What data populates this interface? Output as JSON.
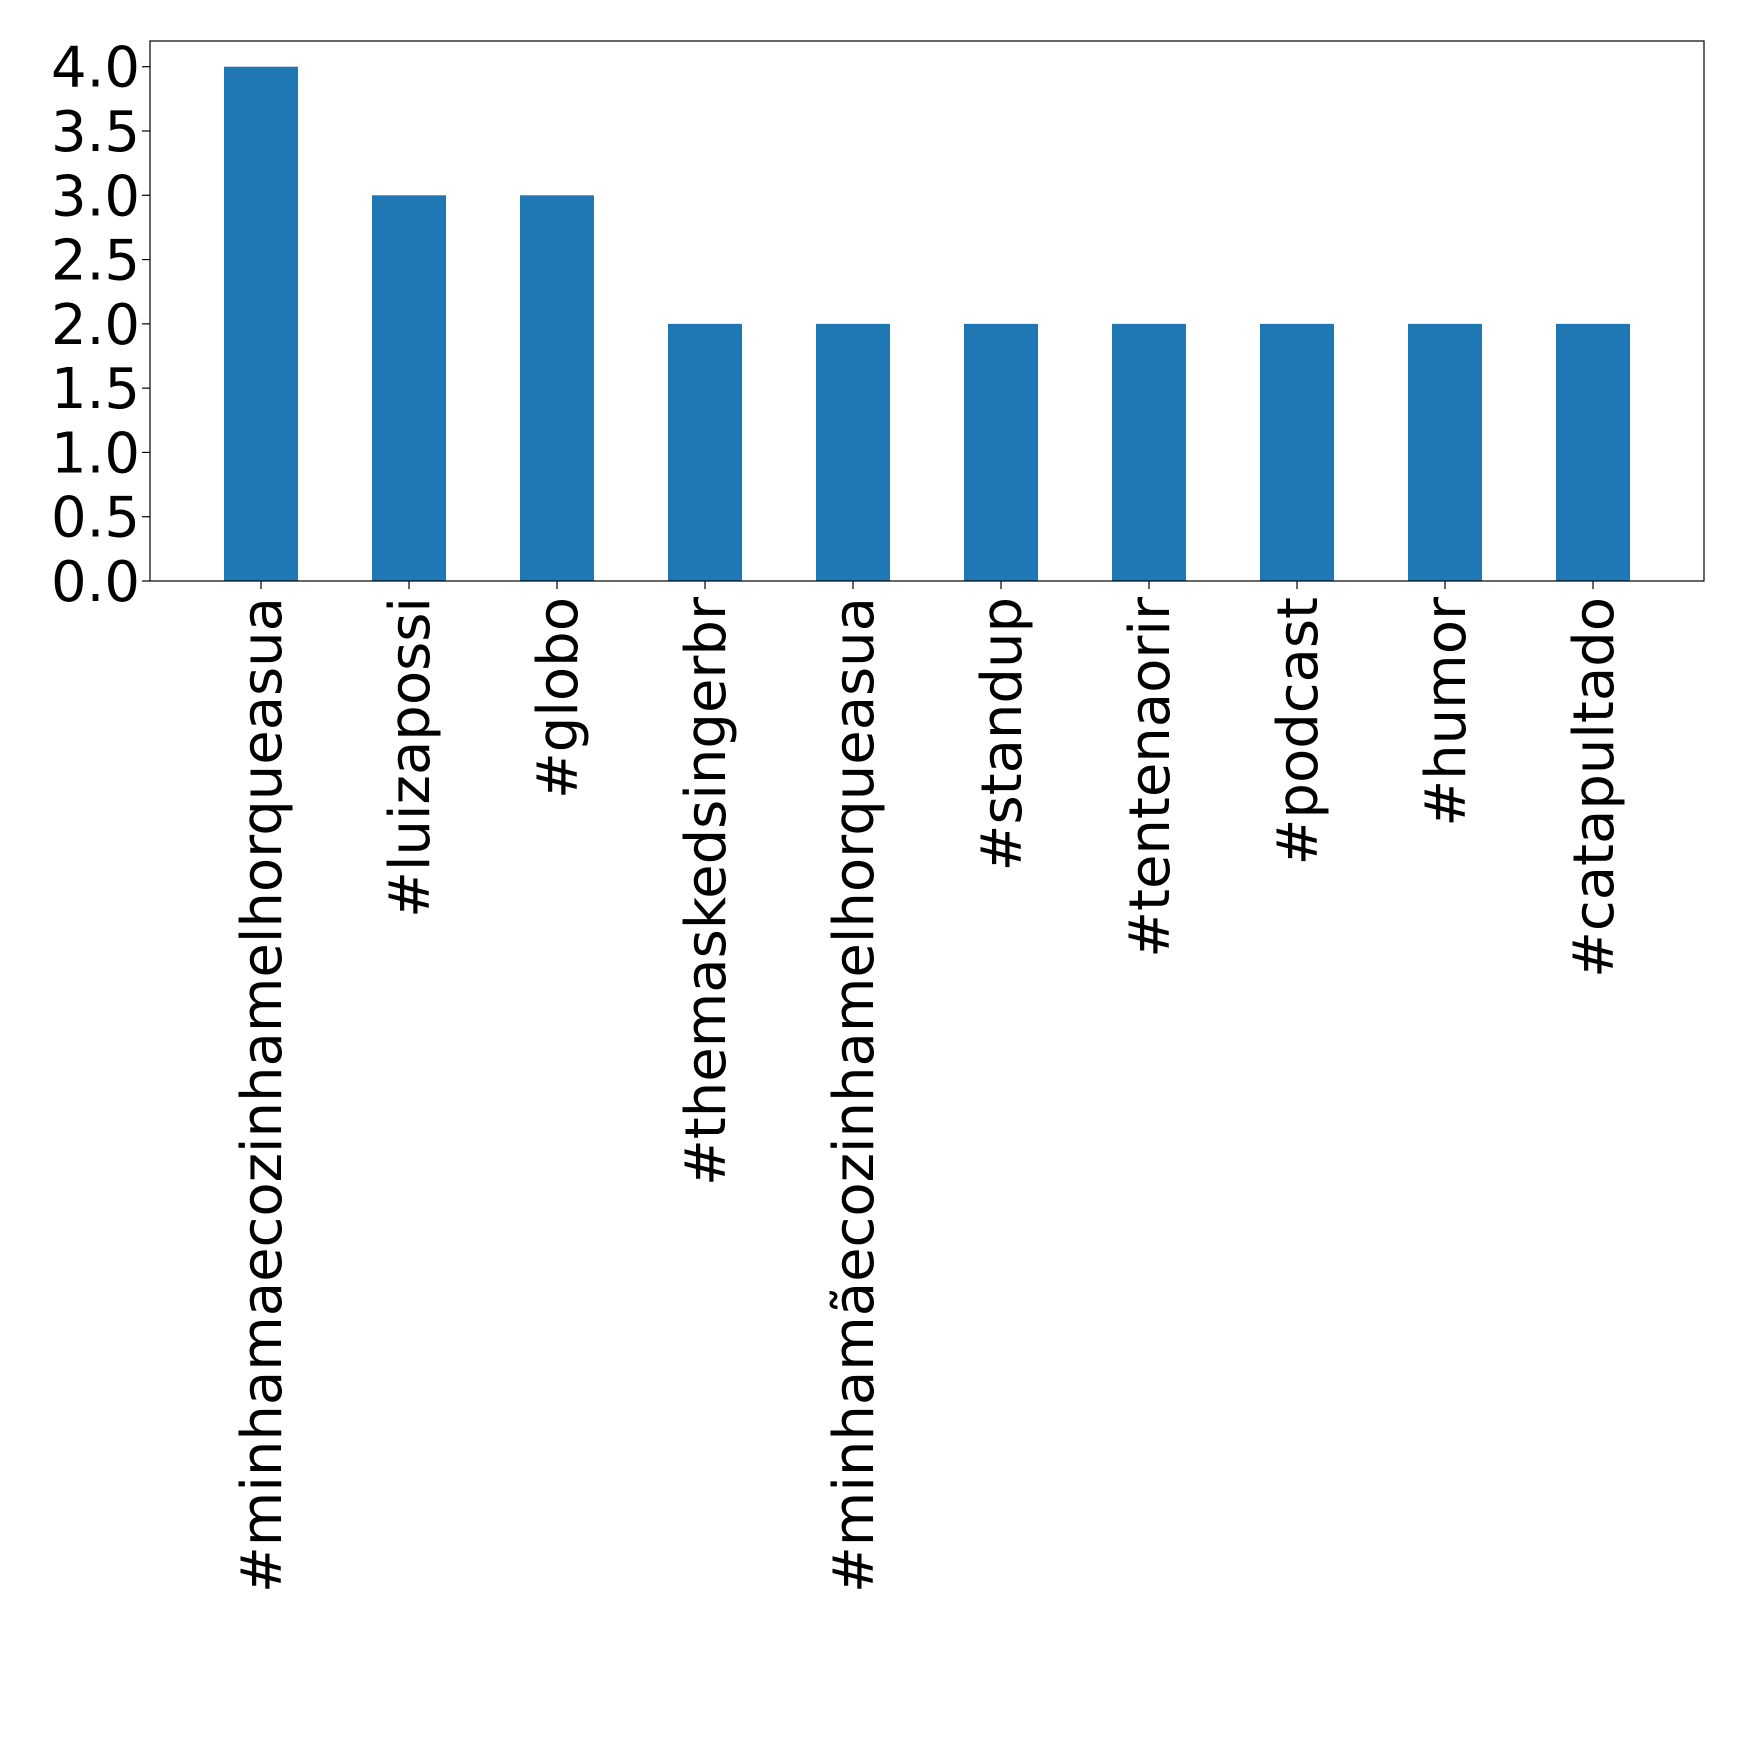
{
  "chart_data": {
    "type": "bar",
    "title": "",
    "xlabel": "",
    "ylabel": "",
    "categories": [
      "#minhamaecozinhamelhorqueasua",
      "#luizapossi",
      "#globo",
      "#themaskedsingerbr",
      "#minhamãecozinhamelhorqueasua",
      "#standup",
      "#tentenaorir",
      "#podcast",
      "#humor",
      "#catapultado"
    ],
    "values": [
      4,
      3,
      3,
      2,
      2,
      2,
      2,
      2,
      2,
      2
    ],
    "ylim": [
      0,
      4.2
    ],
    "yticks": [
      "0.0",
      "0.5",
      "1.0",
      "1.5",
      "2.0",
      "2.5",
      "3.0",
      "3.5",
      "4.0"
    ],
    "grid": false,
    "legend": "none",
    "bar_color": "#1f77b4"
  }
}
